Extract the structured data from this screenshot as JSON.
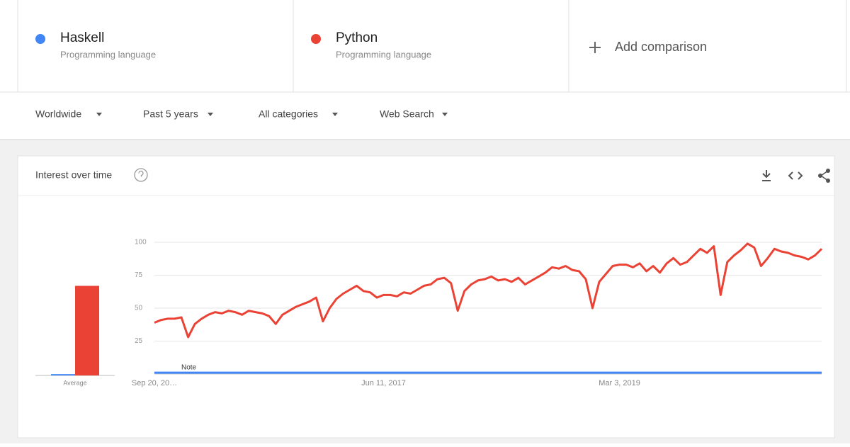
{
  "terms": [
    {
      "subtitle": "Programming language"
    },
    {
      "subtitle": "Programming language"
    }
  ],
  "add_comparison": "Add comparison",
  "filters": [
    "Worldwide",
    "Past 5 years",
    "All categories",
    "Web Search"
  ],
  "card_title": "Interest over time",
  "chart_data": [
    {
      "type": "bar",
      "categories": [
        "Average"
      ],
      "series": [
        {
          "name": "Haskell",
          "color": "#4285f4",
          "values": [
            1
          ]
        },
        {
          "name": "Python",
          "color": "#ea4335",
          "values": [
            68
          ]
        }
      ],
      "ylim": [
        0,
        100
      ]
    },
    {
      "type": "line",
      "annotation": "Note",
      "categories": [
        "Sep 20, 20…",
        null,
        null,
        null,
        null,
        null,
        null,
        null,
        null,
        null,
        null,
        null,
        null,
        null,
        null,
        null,
        null,
        null,
        null,
        null,
        null,
        null,
        null,
        null,
        null,
        null,
        null,
        null,
        null,
        null,
        null,
        null,
        null,
        null,
        "Jun 11, 2017",
        null,
        null,
        null,
        null,
        null,
        null,
        null,
        null,
        null,
        null,
        null,
        null,
        null,
        null,
        null,
        null,
        null,
        null,
        null,
        null,
        null,
        null,
        null,
        null,
        null,
        null,
        null,
        null,
        null,
        null,
        null,
        null,
        null,
        null,
        "Mar 3, 2019",
        null,
        null,
        null,
        null,
        null,
        null,
        null,
        null,
        null,
        null,
        null,
        null,
        null,
        null,
        null,
        null,
        null,
        null,
        null,
        null,
        null,
        null,
        null,
        null,
        null,
        null,
        null,
        null,
        null,
        null
      ],
      "series": [
        {
          "name": "Haskell",
          "color": "#4285f4",
          "values": [
            1,
            1,
            1,
            1,
            1,
            1,
            1,
            1,
            1,
            1,
            1,
            1,
            1,
            1,
            1,
            1,
            1,
            1,
            1,
            1,
            1,
            1,
            1,
            1,
            1,
            1,
            1,
            1,
            1,
            1,
            1,
            1,
            1,
            1,
            1,
            1,
            1,
            1,
            1,
            1,
            1,
            1,
            1,
            1,
            1,
            1,
            1,
            1,
            1,
            1,
            1,
            1,
            1,
            1,
            1,
            1,
            1,
            1,
            1,
            1,
            1,
            1,
            1,
            1,
            1,
            1,
            1,
            1,
            1,
            1,
            1,
            1,
            1,
            1,
            1,
            1,
            1,
            1,
            1,
            1,
            1,
            1,
            1,
            1,
            1,
            1,
            1,
            1,
            1,
            1,
            1,
            1,
            1,
            1,
            1,
            1,
            1,
            1,
            1,
            1
          ]
        },
        {
          "name": "Python",
          "color": "#ea4335",
          "values": [
            39,
            41,
            42,
            42,
            43,
            28,
            38,
            42,
            45,
            47,
            46,
            48,
            47,
            45,
            48,
            47,
            46,
            44,
            38,
            45,
            48,
            51,
            53,
            55,
            58,
            40,
            50,
            57,
            61,
            64,
            67,
            63,
            62,
            58,
            60,
            60,
            59,
            62,
            61,
            64,
            67,
            68,
            72,
            73,
            69,
            48,
            63,
            68,
            71,
            72,
            74,
            71,
            72,
            70,
            73,
            68,
            71,
            74,
            77,
            81,
            80,
            82,
            79,
            78,
            72,
            50,
            70,
            76,
            82,
            83,
            83,
            81,
            84,
            78,
            82,
            77,
            84,
            88,
            83,
            85,
            90,
            95,
            92,
            97,
            60,
            85,
            90,
            94,
            99,
            96,
            82,
            88,
            95,
            93,
            92,
            90,
            89,
            87,
            90,
            95
          ]
        }
      ],
      "ylim": [
        0,
        100
      ],
      "yticks": [
        25,
        50,
        75,
        100
      ],
      "grid": true
    }
  ]
}
